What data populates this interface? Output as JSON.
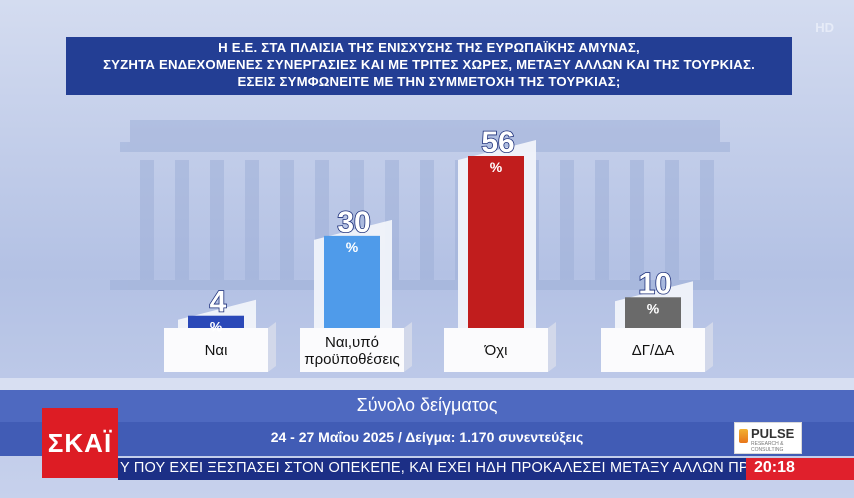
{
  "channel": {
    "logo_text": "ΣΚΑΪ",
    "hd_badge": "HD"
  },
  "question_lines": [
    "Η Ε.Ε. ΣΤΑ ΠΛΑΙΣΙΑ ΤΗΣ ΕΝΙΣΧΥΣΗΣ ΤΗΣ ΕΥΡΩΠΑΪΚΗΣ ΑΜΥΝΑΣ,",
    "ΣΥΖΗΤΑ ΕΝΔΕΧΟΜΕΝΕΣ ΣΥΝΕΡΓΑΣΙΕΣ ΚΑΙ ΜΕ ΤΡΙΤΕΣ ΧΩΡΕΣ, ΜΕΤΑΞΥ ΑΛΛΩΝ ΚΑΙ ΤΗΣ ΤΟΥΡΚΙΑΣ.",
    "ΕΣΕΙΣ ΣΥΜΦΩΝΕΙΤΕ ΜΕ ΤΗΝ ΣΥΜΜΕΤΟΧΗ ΤΗΣ ΤΟΥΡΚΙΑΣ;"
  ],
  "chart_data": {
    "type": "bar",
    "categories": [
      "Ναι",
      "Ναι,υπό προϋποθέσεις",
      "Όχι",
      "ΔΓ/ΔΑ"
    ],
    "category_lines": [
      [
        "Ναι"
      ],
      [
        "Ναι,υπό",
        "προϋποθέσεις"
      ],
      [
        "Όχι"
      ],
      [
        "ΔΓ/ΔΑ"
      ]
    ],
    "values": [
      4,
      30,
      56,
      10
    ],
    "unit": "%",
    "colors": [
      "#2a48b8",
      "#4f9bea",
      "#c11d1d",
      "#6a6a6a"
    ],
    "ylim": [
      0,
      56
    ]
  },
  "footer": {
    "sample_label": "Σύνολο δείγματος",
    "dates_line": "24 - 27 Μαΐου 2025 / Δείγμα: 1.170 συνεντεύξεις",
    "pollster": "PULSE",
    "pollster_sub": "RESEARCH & CONSULTING"
  },
  "ticker": {
    "text": "Υ ΠΟΥ ΕΧΕΙ ΞΕΣΠΑΣΕΙ ΣΤΟΝ ΟΠΕΚΕΠΕ, ΚΑΙ ΕΧΕΙ ΗΔΗ ΠΡΟΚΑΛΕΣΕΙ ΜΕΤΑΞΥ ΑΛΛΩΝ ΠΡΟΣΤΙΜΑ",
    "time": "20:18"
  }
}
